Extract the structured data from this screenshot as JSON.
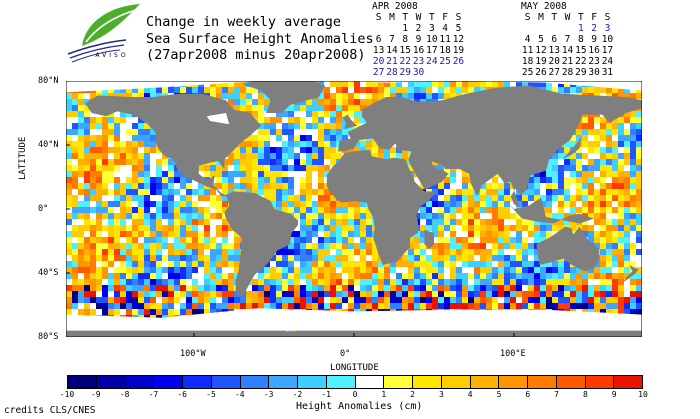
{
  "title": {
    "line1": "Change in weekly average",
    "line2": "Sea Surface Height Anomalies",
    "line3": "(27apr2008 minus 20apr2008)"
  },
  "logo": {
    "text": "AVISO"
  },
  "calendars": [
    {
      "id": "apr",
      "title": "APR 2008",
      "weekdays": [
        "S",
        "M",
        "T",
        "W",
        "T",
        "F",
        "S"
      ],
      "weeks": [
        [
          "",
          "",
          "1",
          "2",
          "3",
          "4",
          "5"
        ],
        [
          "6",
          "7",
          "8",
          "9",
          "10",
          "11",
          "12"
        ],
        [
          "13",
          "14",
          "15",
          "16",
          "17",
          "18",
          "19"
        ],
        [
          "20",
          "21",
          "22",
          "23",
          "24",
          "25",
          "26"
        ],
        [
          "27",
          "28",
          "29",
          "30",
          "",
          "",
          ""
        ]
      ],
      "highlight": [
        "20",
        "21",
        "22",
        "23",
        "24",
        "25",
        "26",
        "27",
        "28",
        "29",
        "30"
      ]
    },
    {
      "id": "may",
      "title": "MAY 2008",
      "weekdays": [
        "S",
        "M",
        "T",
        "W",
        "T",
        "F",
        "S"
      ],
      "weeks": [
        [
          "",
          "",
          "",
          "",
          "1",
          "2",
          "3"
        ],
        [
          "4",
          "5",
          "6",
          "7",
          "8",
          "9",
          "10"
        ],
        [
          "11",
          "12",
          "13",
          "14",
          "15",
          "16",
          "17"
        ],
        [
          "18",
          "19",
          "20",
          "21",
          "22",
          "23",
          "24"
        ],
        [
          "25",
          "26",
          "27",
          "28",
          "29",
          "30",
          "31"
        ]
      ],
      "highlight": [
        "1",
        "2",
        "3"
      ]
    }
  ],
  "axes": {
    "ylabel": "LATITUDE",
    "xlabel": "LONGITUDE",
    "yticks": [
      {
        "label": "80°N",
        "value": 80
      },
      {
        "label": "40°N",
        "value": 40
      },
      {
        "label": "0°",
        "value": 0
      },
      {
        "label": "40°S",
        "value": -40
      },
      {
        "label": "80°S",
        "value": -80
      }
    ],
    "xticks": [
      {
        "label": "100°W",
        "value": -100
      },
      {
        "label": "0°",
        "value": 0
      },
      {
        "label": "100°E",
        "value": 100
      }
    ],
    "lon_range": [
      -180,
      180
    ],
    "lat_range": [
      -80,
      80
    ]
  },
  "colorbar": {
    "title": "Height Anomalies (cm)",
    "ticks": [
      "-10",
      "-9",
      "-8",
      "-7",
      "-6",
      "-5",
      "-4",
      "-3",
      "-2",
      "-1",
      "0",
      "1",
      "2",
      "3",
      "4",
      "5",
      "6",
      "7",
      "8",
      "9",
      "10"
    ],
    "colors": [
      "#00007a",
      "#0000a6",
      "#0000cc",
      "#0000f0",
      "#0f2cff",
      "#1f55ff",
      "#2f7fff",
      "#3fa6ff",
      "#3fcfff",
      "#4ff0ff",
      "#ffffff",
      "#ffff35",
      "#ffe600",
      "#ffcc00",
      "#ffb000",
      "#ff9600",
      "#ff7c00",
      "#ff5a00",
      "#ff3a00",
      "#e81400"
    ]
  },
  "map_colors": {
    "land": "#7f7f7f",
    "ice": "#ffffff"
  },
  "credits": "credits CLS/CNES"
}
